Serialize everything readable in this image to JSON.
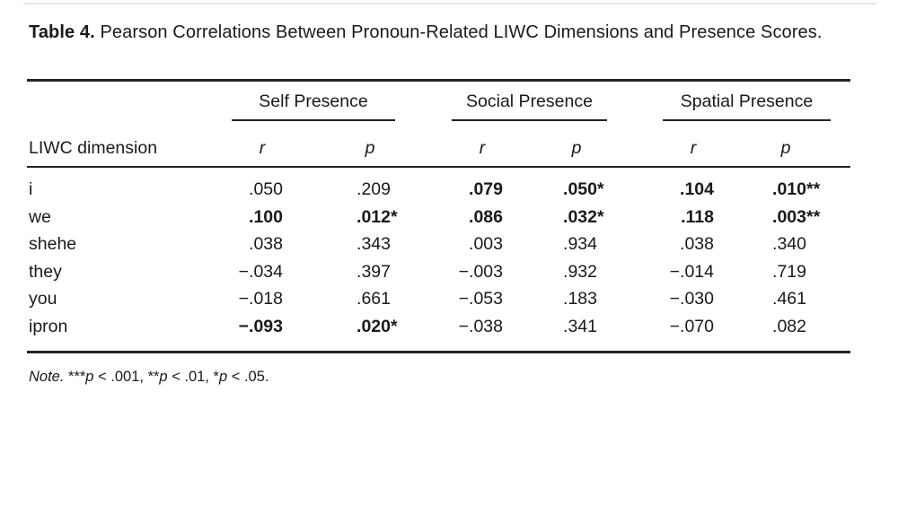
{
  "table": {
    "title_label": "Table 4.",
    "title_text": " Pearson Correlations Between Pronoun-Related LIWC Dimensions and Presence Scores.",
    "row_header": "LIWC dimension",
    "groups": [
      {
        "label": "Self Presence"
      },
      {
        "label": "Social Presence"
      },
      {
        "label": "Spatial Presence"
      }
    ],
    "subheaders": {
      "r": "r",
      "p": "p"
    },
    "rows": [
      {
        "label": "i",
        "cells": [
          {
            "v": ".050",
            "stars": "",
            "b": false
          },
          {
            "v": ".209",
            "stars": "",
            "b": false
          },
          {
            "v": ".079",
            "stars": "",
            "b": true
          },
          {
            "v": ".050",
            "stars": "*",
            "b": true
          },
          {
            "v": ".104",
            "stars": "",
            "b": true
          },
          {
            "v": ".010",
            "stars": "**",
            "b": true
          }
        ]
      },
      {
        "label": "we",
        "cells": [
          {
            "v": ".100",
            "stars": "",
            "b": true
          },
          {
            "v": ".012",
            "stars": "*",
            "b": true
          },
          {
            "v": ".086",
            "stars": "",
            "b": true
          },
          {
            "v": ".032",
            "stars": "*",
            "b": true
          },
          {
            "v": ".118",
            "stars": "",
            "b": true
          },
          {
            "v": ".003",
            "stars": "**",
            "b": true
          }
        ]
      },
      {
        "label": "shehe",
        "cells": [
          {
            "v": ".038",
            "stars": "",
            "b": false
          },
          {
            "v": ".343",
            "stars": "",
            "b": false
          },
          {
            "v": ".003",
            "stars": "",
            "b": false
          },
          {
            "v": ".934",
            "stars": "",
            "b": false
          },
          {
            "v": ".038",
            "stars": "",
            "b": false
          },
          {
            "v": ".340",
            "stars": "",
            "b": false
          }
        ]
      },
      {
        "label": "they",
        "cells": [
          {
            "v": "−.034",
            "stars": "",
            "b": false
          },
          {
            "v": ".397",
            "stars": "",
            "b": false
          },
          {
            "v": "−.003",
            "stars": "",
            "b": false
          },
          {
            "v": ".932",
            "stars": "",
            "b": false
          },
          {
            "v": "−.014",
            "stars": "",
            "b": false
          },
          {
            "v": ".719",
            "stars": "",
            "b": false
          }
        ]
      },
      {
        "label": "you",
        "cells": [
          {
            "v": "−.018",
            "stars": "",
            "b": false
          },
          {
            "v": ".661",
            "stars": "",
            "b": false
          },
          {
            "v": "−.053",
            "stars": "",
            "b": false
          },
          {
            "v": ".183",
            "stars": "",
            "b": false
          },
          {
            "v": "−.030",
            "stars": "",
            "b": false
          },
          {
            "v": ".461",
            "stars": "",
            "b": false
          }
        ]
      },
      {
        "label": "ipron",
        "cells": [
          {
            "v": "−.093",
            "stars": "",
            "b": true
          },
          {
            "v": ".020",
            "stars": "*",
            "b": true
          },
          {
            "v": "−.038",
            "stars": "",
            "b": false
          },
          {
            "v": ".341",
            "stars": "",
            "b": false
          },
          {
            "v": "−.070",
            "stars": "",
            "b": false
          },
          {
            "v": ".082",
            "stars": "",
            "b": false
          }
        ]
      }
    ],
    "note_parts": [
      {
        "t": "Note. ",
        "i": true
      },
      {
        "t": "***"
      },
      {
        "t": "p",
        "i": true
      },
      {
        "t": " < .001, "
      },
      {
        "t": "**"
      },
      {
        "t": "p",
        "i": true
      },
      {
        "t": " < .01, "
      },
      {
        "t": "*"
      },
      {
        "t": "p",
        "i": true
      },
      {
        "t": " < .05."
      }
    ],
    "colors": {
      "text": "#1a1a1a",
      "rule": "#232323"
    }
  }
}
